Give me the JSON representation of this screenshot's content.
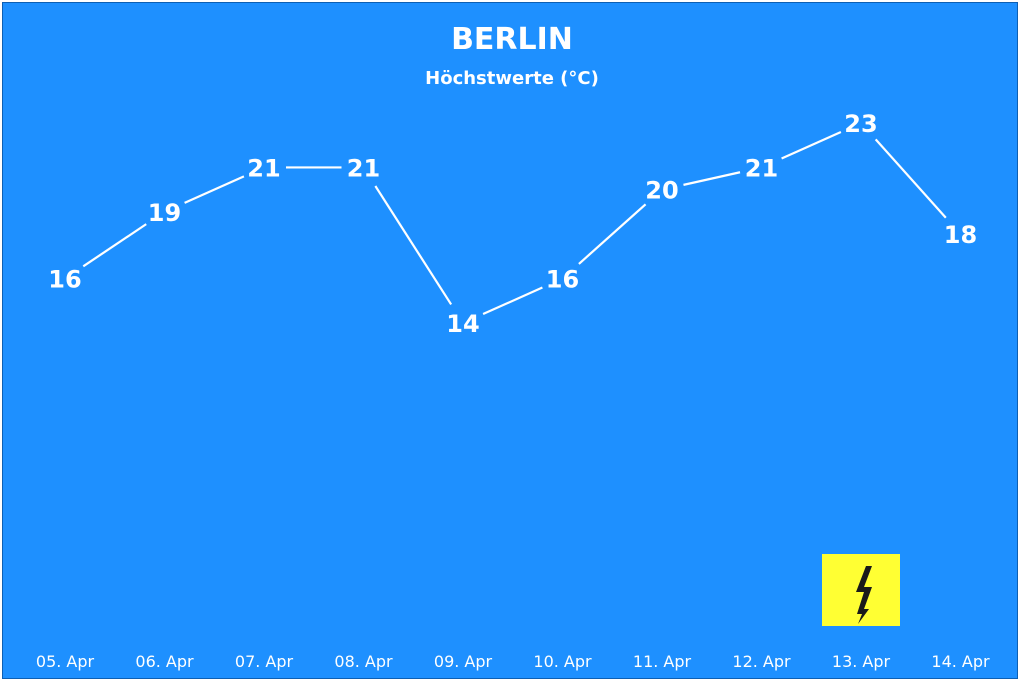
{
  "chart_data": {
    "type": "line",
    "title": "BERLIN",
    "subtitle": "Höchstwerte (°C)",
    "categories": [
      "05. Apr",
      "06. Apr",
      "07. Apr",
      "08. Apr",
      "09. Apr",
      "10. Apr",
      "11. Apr",
      "12. Apr",
      "13. Apr",
      "14. Apr"
    ],
    "values": [
      16,
      19,
      21,
      21,
      14,
      16,
      20,
      21,
      23,
      18
    ],
    "ylim": [
      0,
      28
    ],
    "grid": false,
    "legend": "none",
    "annotations": [
      {
        "category": "13. Apr",
        "type": "warning-icon",
        "icon": "lightning-bolt-icon"
      }
    ]
  },
  "colors": {
    "background": "#1e90ff",
    "line": "#ffffff",
    "text": "#ffffff",
    "warning_bg": "#ffff33",
    "warning_icon": "#1a1a1a"
  }
}
